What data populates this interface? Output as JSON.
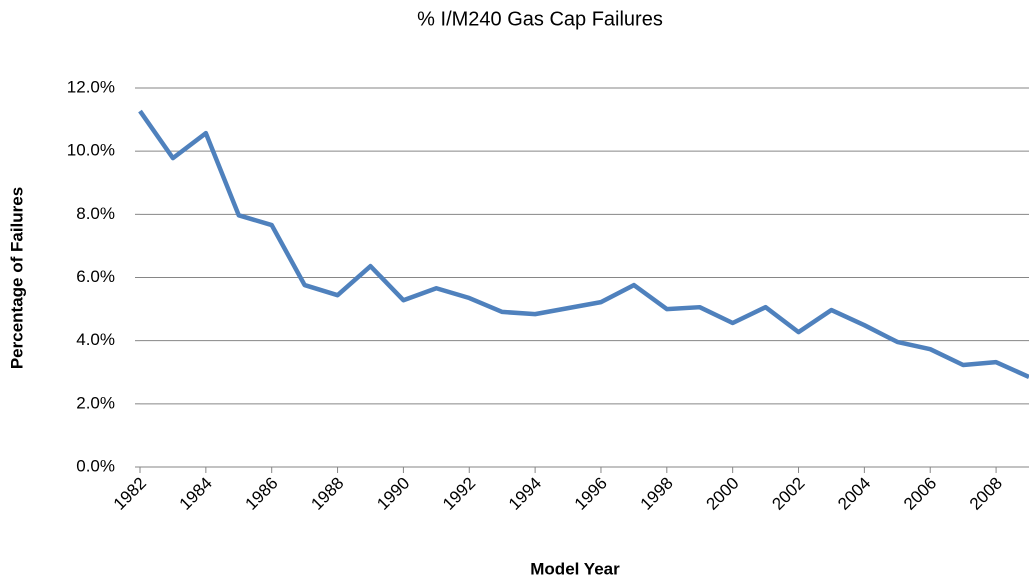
{
  "chart_data": {
    "type": "line",
    "title": "% I/M240 Gas Cap Failures",
    "x_label": "Model Year",
    "y_label": "Percentage of Failures",
    "x": [
      1982,
      1983,
      1984,
      1985,
      1986,
      1987,
      1988,
      1989,
      1990,
      1991,
      1992,
      1993,
      1994,
      1995,
      1996,
      1997,
      1998,
      1999,
      2000,
      2001,
      2002,
      2003,
      2004,
      2005,
      2006,
      2007,
      2008,
      2009
    ],
    "series": [
      {
        "name": "% I/M240 Gas Cap Failures",
        "color": "#4f81bd",
        "values": [
          11.27,
          9.78,
          10.57,
          7.97,
          7.66,
          5.76,
          5.44,
          6.36,
          5.28,
          5.66,
          5.35,
          4.91,
          4.84,
          5.03,
          5.22,
          5.76,
          5.0,
          5.06,
          4.56,
          5.06,
          4.27,
          4.97,
          4.49,
          3.96,
          3.73,
          3.23,
          3.32,
          2.85
        ]
      }
    ],
    "xlim": [
      1982,
      2009
    ],
    "xticks": [
      1982,
      1984,
      1986,
      1988,
      1990,
      1992,
      1994,
      1996,
      1998,
      2000,
      2002,
      2004,
      2006,
      2008
    ],
    "ylim": [
      0,
      12
    ],
    "yticks": [
      {
        "value": 0,
        "label": "0.0%"
      },
      {
        "value": 2,
        "label": "2.0%"
      },
      {
        "value": 4,
        "label": "4.0%"
      },
      {
        "value": 6,
        "label": "6.0%"
      },
      {
        "value": 8,
        "label": "8.0%"
      },
      {
        "value": 10,
        "label": "10.0%"
      },
      {
        "value": 12,
        "label": "12.0%"
      }
    ],
    "grid": true
  }
}
